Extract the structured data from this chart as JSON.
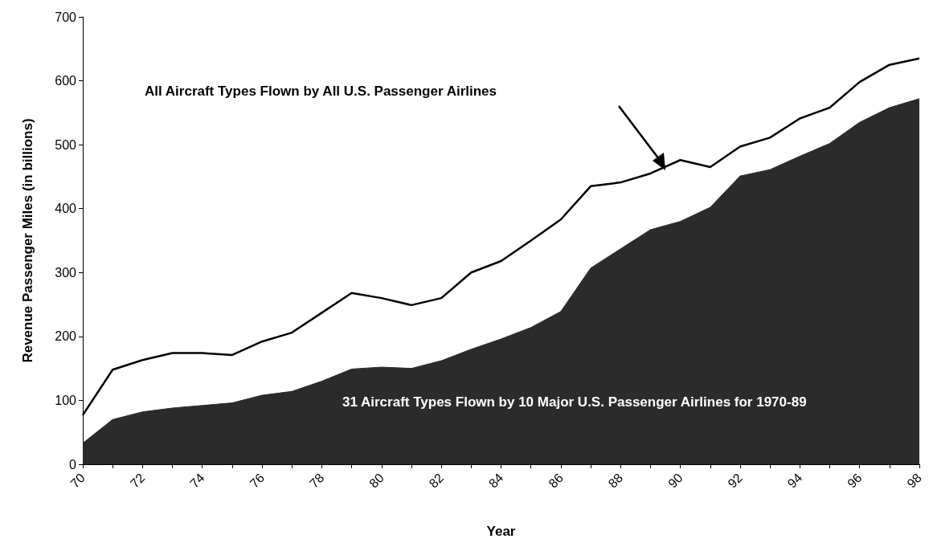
{
  "chart_data": {
    "type": "area",
    "xlabel": "Year",
    "ylabel": "Revenue Passenger Miles (in billions)",
    "categories": [
      "70",
      null,
      "72",
      null,
      "74",
      null,
      "76",
      null,
      "78",
      null,
      "80",
      null,
      "82",
      null,
      "84",
      null,
      "86",
      null,
      "88",
      null,
      "90",
      null,
      "92",
      null,
      "94",
      null,
      "96",
      null,
      "98"
    ],
    "series": [
      {
        "name": "All Aircraft Types Flown by All U.S. Passenger Airlines",
        "type": "line",
        "color": "#000000",
        "values": [
          77,
          148,
          163,
          174,
          174,
          171,
          192,
          206,
          237,
          268,
          260,
          249,
          260,
          300,
          318,
          350,
          383,
          435,
          441,
          455,
          476,
          465,
          497,
          511,
          541,
          558,
          598,
          625,
          635
        ]
      },
      {
        "name": "31 Aircraft Types Flown by 10 Major U.S. Passenger Airlines for 1970-89",
        "color": "#2b2b2b",
        "values": [
          33,
          70,
          82,
          88,
          92,
          96,
          108,
          114,
          130,
          149,
          152,
          150,
          162,
          180,
          196,
          214,
          239,
          307,
          337,
          367,
          380,
          402,
          451,
          461,
          482,
          502,
          535,
          558,
          572
        ]
      }
    ],
    "ylim": [
      0,
      700
    ],
    "yticks": [
      0,
      100,
      200,
      300,
      400,
      500,
      600,
      700
    ],
    "grid": false,
    "legend": false
  }
}
